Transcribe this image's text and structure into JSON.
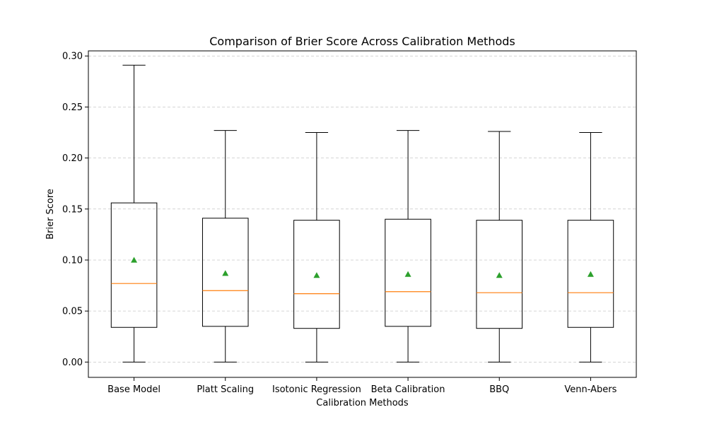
{
  "chart_data": {
    "type": "box",
    "title": "Comparison of Brier Score Across Calibration Methods",
    "xlabel": "Calibration Methods",
    "ylabel": "Brier Score",
    "ylim": [
      -0.015,
      0.305
    ],
    "yticks": [
      "0.00",
      "0.05",
      "0.10",
      "0.15",
      "0.20",
      "0.25",
      "0.30"
    ],
    "grid": "y, dashed",
    "categories": [
      "Base Model",
      "Platt Scaling",
      "Isotonic Regression",
      "Beta Calibration",
      "BBQ",
      "Venn-Abers"
    ],
    "boxes": [
      {
        "whisker_low": 0.0,
        "q1": 0.034,
        "median": 0.077,
        "q3": 0.156,
        "whisker_high": 0.291,
        "mean": 0.1
      },
      {
        "whisker_low": 0.0,
        "q1": 0.035,
        "median": 0.07,
        "q3": 0.141,
        "whisker_high": 0.227,
        "mean": 0.087
      },
      {
        "whisker_low": 0.0,
        "q1": 0.033,
        "median": 0.067,
        "q3": 0.139,
        "whisker_high": 0.225,
        "mean": 0.085
      },
      {
        "whisker_low": 0.0,
        "q1": 0.035,
        "median": 0.069,
        "q3": 0.14,
        "whisker_high": 0.227,
        "mean": 0.086
      },
      {
        "whisker_low": 0.0,
        "q1": 0.033,
        "median": 0.068,
        "q3": 0.139,
        "whisker_high": 0.226,
        "mean": 0.085
      },
      {
        "whisker_low": 0.0,
        "q1": 0.034,
        "median": 0.068,
        "q3": 0.139,
        "whisker_high": 0.225,
        "mean": 0.086
      }
    ],
    "colors": {
      "box": "#000000",
      "median": "#ff7f0e",
      "mean": "#2ca02c",
      "grid": "#b0b0b0"
    }
  }
}
